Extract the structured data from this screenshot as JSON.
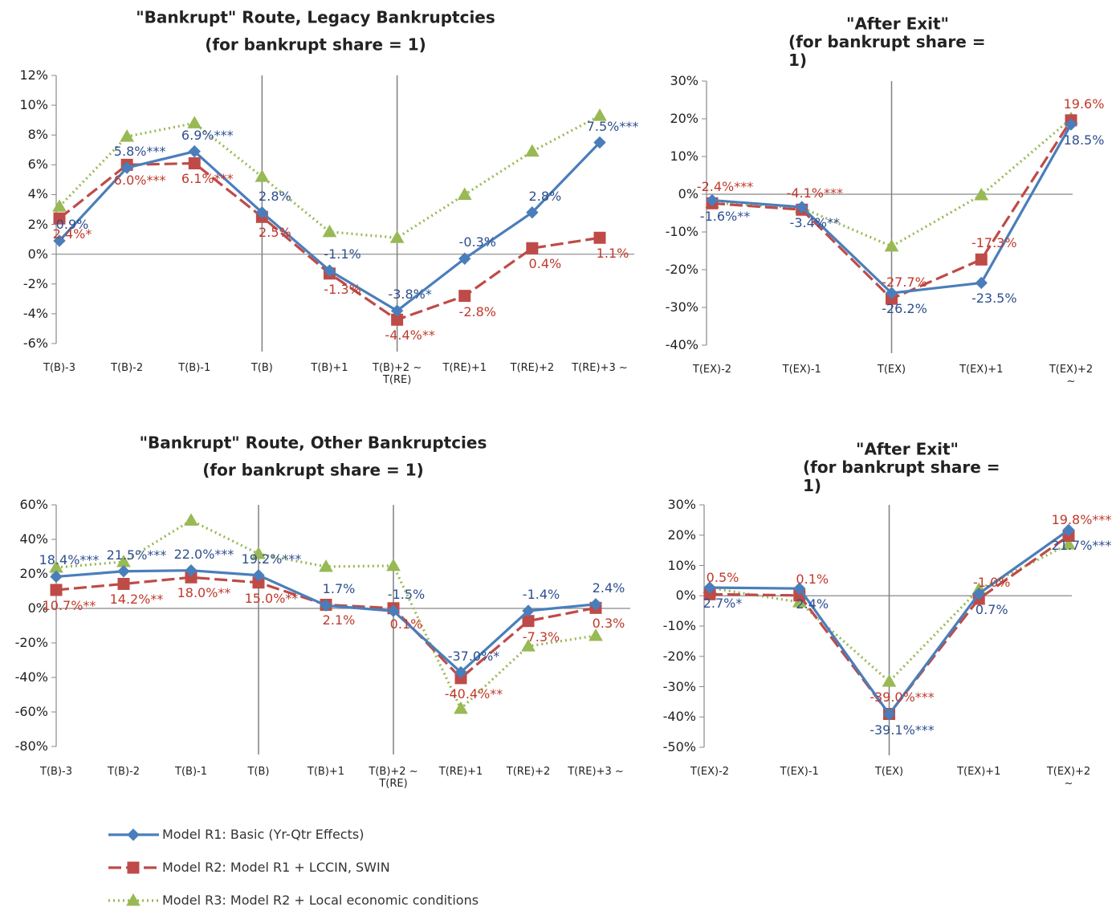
{
  "chart_data": [
    {
      "type": "line",
      "title": "\"Bankrupt\" Route, Legacy Bankruptcies",
      "subtitle": "(for bankrupt share = 1)",
      "categories": [
        "T(B)-3",
        "T(B)-2",
        "T(B)-1",
        "T(B)",
        "T(B)+1",
        "T(B)+2 ~\nT(RE)",
        "T(RE)+1",
        "T(RE)+2",
        "T(RE)+3 ~"
      ],
      "ylim": [
        -6,
        12
      ],
      "yticks": [
        {
          "value": 12,
          "label": "12%"
        },
        {
          "value": 10,
          "label": "10%"
        },
        {
          "value": 8,
          "label": "8%"
        },
        {
          "value": 6,
          "label": "6%"
        },
        {
          "value": 4,
          "label": "4%"
        },
        {
          "value": 2,
          "label": "2%"
        },
        {
          "value": 0,
          "label": "0%"
        },
        {
          "value": -2,
          "label": "-2%"
        },
        {
          "value": -4,
          "label": "-4%"
        },
        {
          "value": -6,
          "label": "-6%"
        }
      ],
      "series": [
        {
          "values": [
            0.9,
            5.8,
            6.9,
            2.8,
            -1.1,
            -3.8,
            -0.3,
            2.8,
            7.5
          ],
          "value_labels": [
            "0.9%",
            "5.8%***",
            "6.9%***",
            "2.8%",
            "-1.1%",
            "-3.8%*",
            "-0.3%",
            "2.8%",
            "7.5%***"
          ]
        },
        {
          "values": [
            2.4,
            6.0,
            6.1,
            2.5,
            -1.3,
            -4.4,
            -2.8,
            0.4,
            1.1
          ],
          "value_labels": [
            "2.4%*",
            "6.0%***",
            "6.1%***",
            "2.5%",
            "-1.3%",
            "-4.4%**",
            "-2.8%",
            "0.4%",
            "1.1%"
          ]
        },
        {
          "values": [
            3.2,
            7.9,
            8.8,
            5.2,
            1.5,
            1.1,
            4.0,
            6.9,
            9.3
          ]
        }
      ]
    },
    {
      "type": "line",
      "title": "\"After Exit\"",
      "subtitle": "(for bankrupt share = 1)",
      "categories": [
        "T(EX)-2",
        "T(EX)-1",
        "T(EX)",
        "T(EX)+1",
        "T(EX)+2 ~"
      ],
      "ylim": [
        -40,
        30
      ],
      "yticks": [
        {
          "value": 30,
          "label": "30%"
        },
        {
          "value": 20,
          "label": "20%"
        },
        {
          "value": 10,
          "label": "10%"
        },
        {
          "value": 0,
          "label": "0%"
        },
        {
          "value": -10,
          "label": "-10%"
        },
        {
          "value": -20,
          "label": "-20%"
        },
        {
          "value": -30,
          "label": "-30%"
        },
        {
          "value": -40,
          "label": "-40%"
        }
      ],
      "series": [
        {
          "values": [
            -1.6,
            -3.4,
            -26.2,
            -23.5,
            18.5
          ],
          "value_labels": [
            "-1.6%**",
            "-3.4%**",
            "-26.2%",
            "-23.5%",
            "18.5%"
          ]
        },
        {
          "values": [
            -2.4,
            -4.1,
            -27.7,
            -17.3,
            19.6
          ],
          "value_labels": [
            "-2.4%***",
            "-4.1%***",
            "-27.7%",
            "-17.3%",
            "19.6%"
          ]
        },
        {
          "values": [
            -2.3,
            -3.6,
            -13.8,
            -0.2,
            20.0
          ]
        }
      ]
    },
    {
      "type": "line",
      "title": "\"Bankrupt\" Route, Other Bankruptcies",
      "subtitle": "(for bankrupt share = 1)",
      "categories": [
        "T(B)-3",
        "T(B)-2",
        "T(B)-1",
        "T(B)",
        "T(B)+1",
        "T(B)+2 ~\nT(RE)",
        "T(RE)+1",
        "T(RE)+2",
        "T(RE)+3 ~"
      ],
      "ylim": [
        -80,
        60
      ],
      "yticks": [
        {
          "value": 60,
          "label": "60%"
        },
        {
          "value": 40,
          "label": "40%"
        },
        {
          "value": 20,
          "label": "20%"
        },
        {
          "value": 0,
          "label": "0%"
        },
        {
          "value": -20,
          "label": "-20%"
        },
        {
          "value": -40,
          "label": "-40%"
        },
        {
          "value": -60,
          "label": "-60%"
        },
        {
          "value": -80,
          "label": "-80%"
        }
      ],
      "series": [
        {
          "values": [
            18.4,
            21.5,
            22.0,
            19.2,
            1.7,
            -1.5,
            -37.0,
            -1.4,
            2.4
          ],
          "value_labels": [
            "18.4%***",
            "21.5%***",
            "22.0%***",
            "19.2%***",
            "1.7%",
            "-1.5%",
            "-37.0%*",
            "-1.4%",
            "2.4%"
          ]
        },
        {
          "values": [
            10.7,
            14.2,
            18.0,
            15.0,
            2.1,
            0.1,
            -40.4,
            -7.3,
            0.3
          ],
          "value_labels": [
            "10.7%**",
            "14.2%**",
            "18.0%**",
            "15.0%**",
            "2.1%",
            "0.1%",
            "-40.4%**",
            "-7.3%",
            "0.3%"
          ]
        },
        {
          "values": [
            23.7,
            27.0,
            51.0,
            31.6,
            24.2,
            24.7,
            -58.1,
            -21.9,
            -15.8
          ]
        }
      ]
    },
    {
      "type": "line",
      "title": "\"After Exit\"",
      "subtitle": "(for bankrupt share = 1)",
      "categories": [
        "T(EX)-2",
        "T(EX)-1",
        "T(EX)",
        "T(EX)+1",
        "T(EX)+2 ~"
      ],
      "ylim": [
        -50,
        30
      ],
      "yticks": [
        {
          "value": 30,
          "label": "30%"
        },
        {
          "value": 20,
          "label": "20%"
        },
        {
          "value": 10,
          "label": "10%"
        },
        {
          "value": 0,
          "label": "0%"
        },
        {
          "value": -10,
          "label": "-10%"
        },
        {
          "value": -20,
          "label": "-20%"
        },
        {
          "value": -30,
          "label": "-30%"
        },
        {
          "value": -40,
          "label": "-40%"
        },
        {
          "value": -50,
          "label": "-50%"
        }
      ],
      "series": [
        {
          "values": [
            2.7,
            2.4,
            -39.1,
            0.7,
            21.7
          ],
          "value_labels": [
            "2.7%*",
            "2.4%",
            "-39.1%***",
            "0.7%",
            "21.7%***"
          ]
        },
        {
          "values": [
            0.5,
            0.1,
            -39.0,
            -1.0,
            19.8
          ],
          "value_labels": [
            "0.5%",
            "0.1%",
            "-39.0%***",
            "-1.0%",
            "19.8%***"
          ]
        },
        {
          "values": [
            2.6,
            -2.1,
            -28.3,
            2.1,
            17.0
          ]
        }
      ]
    }
  ],
  "legend": {
    "entries": [
      {
        "name": "Model R1: Basic (Yr-Qtr Effects)",
        "color": "#4a7ebb",
        "label_color": "#2e4f8f",
        "marker": "diamond",
        "dash": "solid"
      },
      {
        "name": "Model R2: Model R1 + LCCIN, SWIN",
        "color": "#be4b48",
        "label_color": "#c0392b",
        "marker": "square",
        "dash": "dashed"
      },
      {
        "name": "Model R3: Model R2 + Local economic conditions",
        "color": "#98b954",
        "label_color": "#6a8a2a",
        "marker": "triangle",
        "dash": "dotted"
      }
    ]
  }
}
